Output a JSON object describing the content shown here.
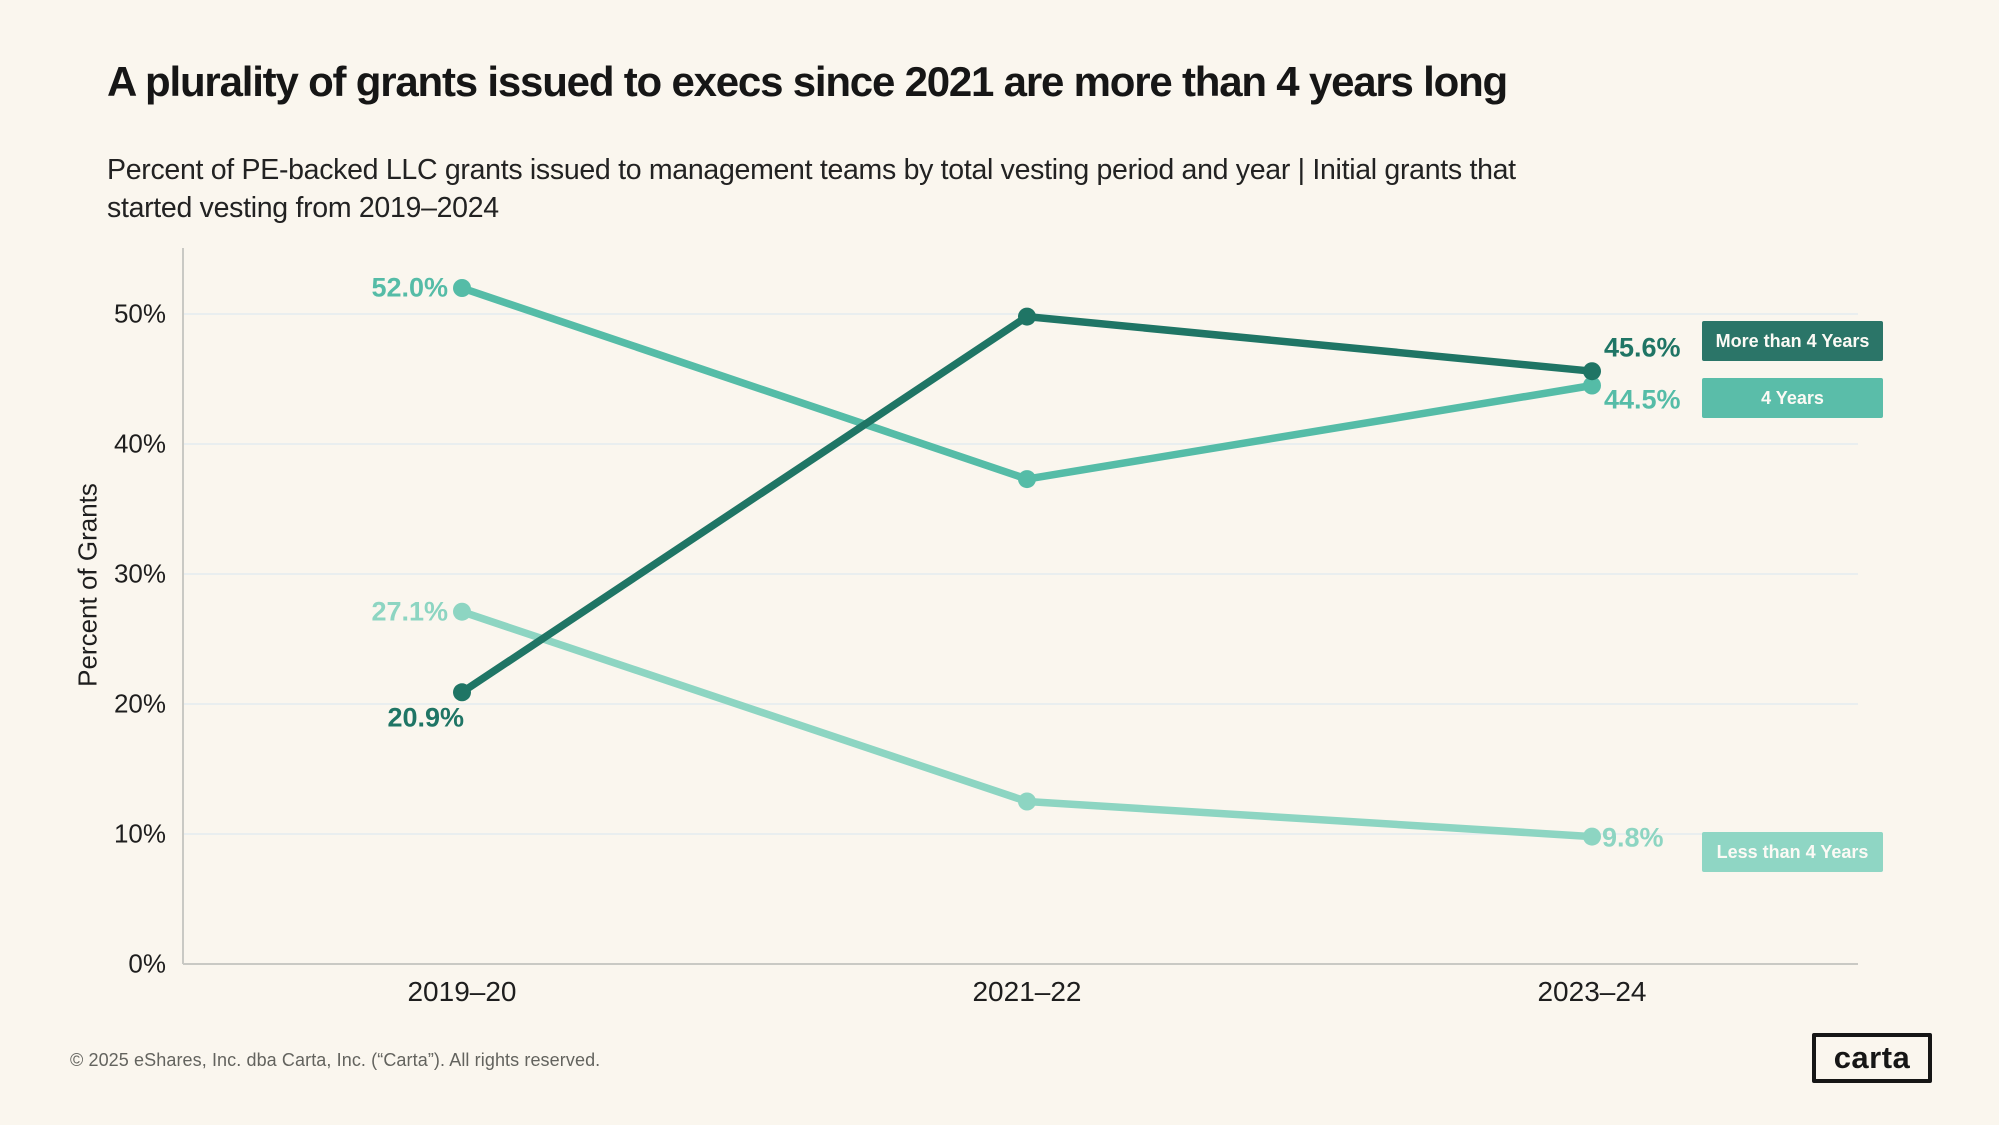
{
  "page": {
    "footer": "© 2025 eShares, Inc. dba Carta, Inc. (“Carta”). All rights reserved.",
    "logo_text": "carta"
  },
  "colors": {
    "background": "#FAF6EE",
    "gridline": "#E9EEEF",
    "axis": "#C9C9C4",
    "text": "#1E1E1E",
    "footer_text": "#63635E"
  },
  "chart_data": {
    "type": "line",
    "title": "A plurality of grants issued to execs since 2021 are more than 4 years long",
    "subtitle": "Percent of PE-backed LLC grants issued to management teams by total vesting period and year | Initial grants that started vesting from 2019–2024",
    "xlabel": "",
    "ylabel": "Percent of Grants",
    "categories": [
      "2019–20",
      "2021–22",
      "2023–24"
    ],
    "yticks": [
      "0%",
      "10%",
      "20%",
      "30%",
      "40%",
      "50%"
    ],
    "ytick_values": [
      0,
      10,
      20,
      30,
      40,
      50
    ],
    "ylim": [
      0,
      55
    ],
    "grid": "horizontal",
    "legend_position": "right",
    "series": [
      {
        "name": "More than 4 Years",
        "color": "#1F7565",
        "values": [
          20.9,
          49.8,
          45.6
        ]
      },
      {
        "name": "4 Years",
        "color": "#55BCA7",
        "values": [
          52.0,
          37.3,
          44.5
        ]
      },
      {
        "name": "Less than 4 Years",
        "color": "#8DD5C2",
        "values": [
          27.1,
          12.5,
          9.8
        ]
      }
    ],
    "point_labels": {
      "more_start": "20.9%",
      "more_end": "45.6%",
      "four_start": "52.0%",
      "four_end": "44.5%",
      "less_start": "27.1%",
      "less_end": "9.8%"
    }
  },
  "legend": {
    "items": [
      {
        "label": "More than 4 Years",
        "color": "#2B7568"
      },
      {
        "label": "4 Years",
        "color": "#5ABDA9"
      },
      {
        "label": "Less than 4 Years",
        "color": "#8FD6C4"
      }
    ]
  }
}
